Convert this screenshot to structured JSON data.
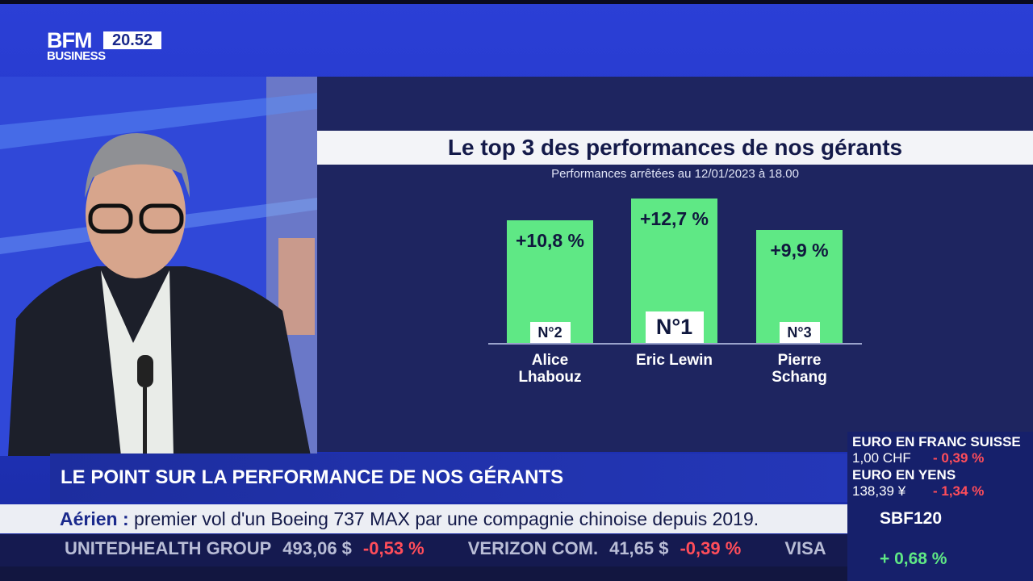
{
  "channel": {
    "logo": "BFM",
    "sub": "BUSINESS",
    "time": "20.52"
  },
  "chart_data": {
    "type": "bar",
    "title": "Le top 3 des performances de nos gérants",
    "subtitle": "Performances arrêtées au 12/01/2023 à 18.00",
    "categories": [
      "Alice Lhabouz",
      "Eric Lewin",
      "Pierre Schang"
    ],
    "ranks": [
      "N°2",
      "N°1",
      "N°3"
    ],
    "values": [
      10.8,
      12.7,
      9.9
    ],
    "value_labels": [
      "+10,8 %",
      "+12,7 %",
      "+9,9 %"
    ],
    "color": "#5fe885"
  },
  "banner": {
    "headline": "LE POINT SUR LA PERFORMANCE DE NOS GÉRANTS"
  },
  "news": {
    "topic": "Aérien :",
    "text": "premier vol d'un Boeing 737 MAX par une compagnie chinoise depuis 2019."
  },
  "stocks": [
    {
      "name": "UNITEDHEALTH GROUP",
      "price": "493,06 $",
      "change": "-0,53 %"
    },
    {
      "name": "VERIZON COM.",
      "price": "41,65 $",
      "change": "-0,39 %"
    },
    {
      "name": "VISA",
      "price": "",
      "change": ""
    }
  ],
  "markets": [
    {
      "name": "EURO EN FRANC SUISSE",
      "price": "1,00 CHF",
      "change": "- 0,39 %"
    },
    {
      "name": "EURO EN YENS",
      "price": "138,39 ¥",
      "change": "- 1,34 %"
    }
  ],
  "index": {
    "name": "SBF120",
    "change": "+ 0,68 %"
  }
}
